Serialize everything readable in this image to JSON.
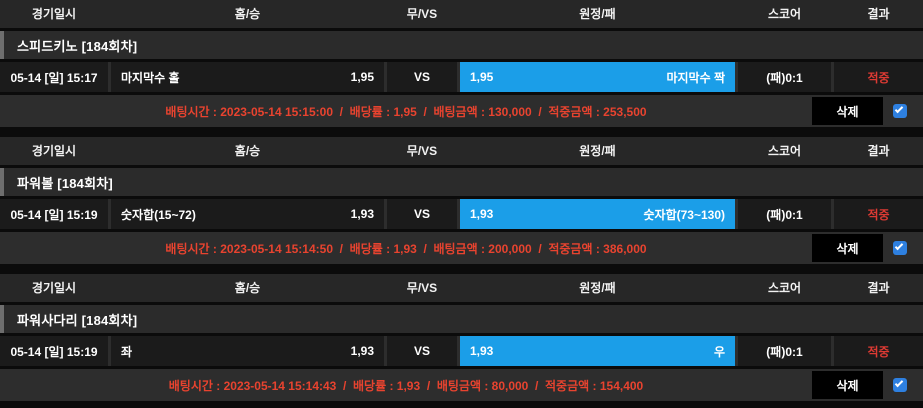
{
  "columns": {
    "datetime": "경기일시",
    "home": "홈/승",
    "draw": "무/VS",
    "away": "원정/패",
    "score": "스코어",
    "result": "결과"
  },
  "labels": {
    "vs": "VS",
    "delete": "삭제",
    "checkbox_icon": "check-icon"
  },
  "colors": {
    "selected_pick_blue": "#1b9ee8",
    "bet_info_red": "#e8432f",
    "result_red": "#dd3a33",
    "checkbox_blue": "#2e80e0"
  },
  "sections": [
    {
      "title": "스피드키노  [184회차]",
      "datetime": "05-14 [일] 15:17",
      "home_label": "마지막수 홀",
      "home_odds": "1,95",
      "away_label": "마지막수 짝",
      "away_odds": "1,95",
      "selected_side": "away",
      "score": "(패)0:1",
      "result": "적중",
      "bet_info": "배팅시간 : 2023-05-14 15:15:00  /  배당률 : 1,95  /  배팅금액 : 130,000  /  적중금액 : 253,500",
      "checkbox_checked": true
    },
    {
      "title": "파워볼  [184회차]",
      "datetime": "05-14 [일] 15:19",
      "home_label": "숫자합(15~72)",
      "home_odds": "1,93",
      "away_label": "숫자합(73~130)",
      "away_odds": "1,93",
      "selected_side": "away",
      "score": "(패)0:1",
      "result": "적중",
      "bet_info": "배팅시간 : 2023-05-14 15:14:50  /  배당률 : 1,93  /  배팅금액 : 200,000  /  적중금액 : 386,000",
      "checkbox_checked": true
    },
    {
      "title": "파워사다리  [184회차]",
      "datetime": "05-14 [일] 15:19",
      "home_label": "좌",
      "home_odds": "1,93",
      "away_label": "우",
      "away_odds": "1,93",
      "selected_side": "away",
      "score": "(패)0:1",
      "result": "적중",
      "bet_info": "배팅시간 : 2023-05-14 15:14:43  /  배당률 : 1,93  /  배팅금액 : 80,000  /  적중금액 : 154,400",
      "checkbox_checked": true
    }
  ]
}
